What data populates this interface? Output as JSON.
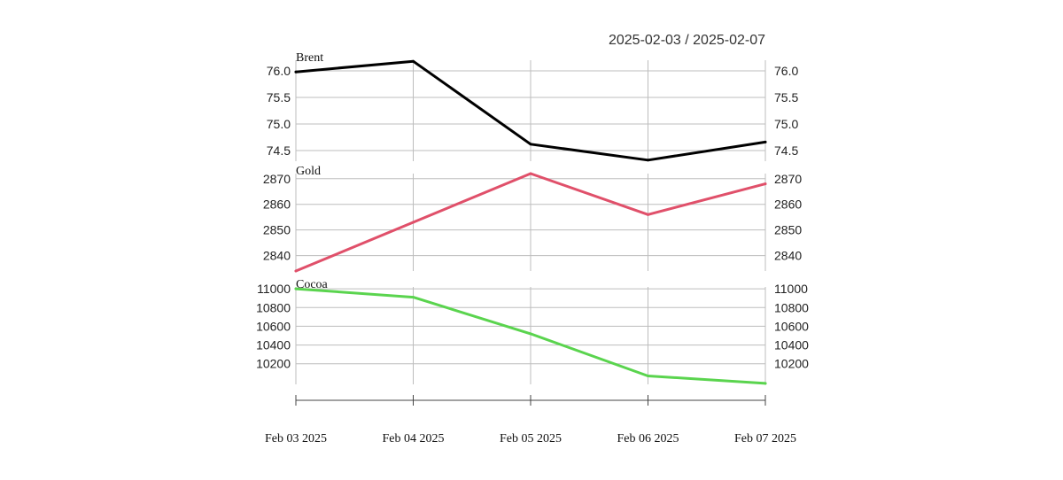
{
  "chart_data": {
    "type": "line",
    "date_range": "2025-02-03 / 2025-02-07",
    "x": [
      "Feb 03 2025",
      "Feb 04 2025",
      "Feb 05 2025",
      "Feb 06 2025",
      "Feb 07 2025"
    ],
    "grid": true,
    "panels": [
      {
        "label": "Brent",
        "color": "#000000",
        "values": [
          75.98,
          76.18,
          74.62,
          74.32,
          74.66
        ],
        "ylim": [
          74.3,
          76.2
        ],
        "yticks": [
          "76.0",
          "75.5",
          "75.0",
          "74.5"
        ],
        "ytick_values": [
          76.0,
          75.5,
          75.0,
          74.5
        ]
      },
      {
        "label": "Gold",
        "color": "#e0506a",
        "values": [
          2834,
          2853,
          2872,
          2856,
          2868
        ],
        "ylim": [
          2834,
          2872
        ],
        "yticks": [
          "2870",
          "2860",
          "2850",
          "2840"
        ],
        "ytick_values": [
          2870,
          2860,
          2850,
          2840
        ]
      },
      {
        "label": "Cocoa",
        "color": "#5ad44e",
        "values": [
          11000,
          10910,
          10520,
          10070,
          9990
        ],
        "ylim": [
          9980,
          11020
        ],
        "yticks": [
          "11000",
          "10800",
          "10600",
          "10400",
          "10200"
        ],
        "ytick_values": [
          11000,
          10800,
          10600,
          10400,
          10200
        ]
      }
    ]
  }
}
